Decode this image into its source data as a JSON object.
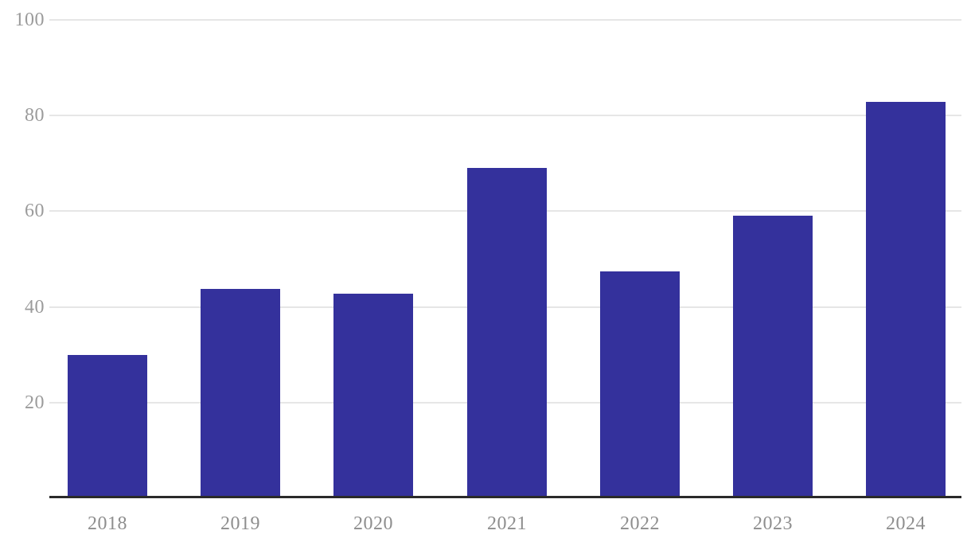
{
  "chart_data": {
    "type": "bar",
    "categories": [
      "2018",
      "2019",
      "2020",
      "2021",
      "2022",
      "2023",
      "2024"
    ],
    "values": [
      30,
      43.7,
      42.8,
      69,
      47.4,
      59,
      82.8
    ],
    "title": "",
    "xlabel": "",
    "ylabel": "",
    "ylim": [
      0,
      100
    ],
    "yticks": [
      20,
      40,
      60,
      80,
      100
    ],
    "grid": true,
    "legend_position": "none",
    "colors": {
      "bar": "#34319c",
      "axis_line": "#2a2a2a",
      "gridline": "#e6e6e6",
      "y_tick_label": "#9b9b9b",
      "x_tick_label": "#8e8e8e",
      "background": "#ffffff"
    }
  }
}
